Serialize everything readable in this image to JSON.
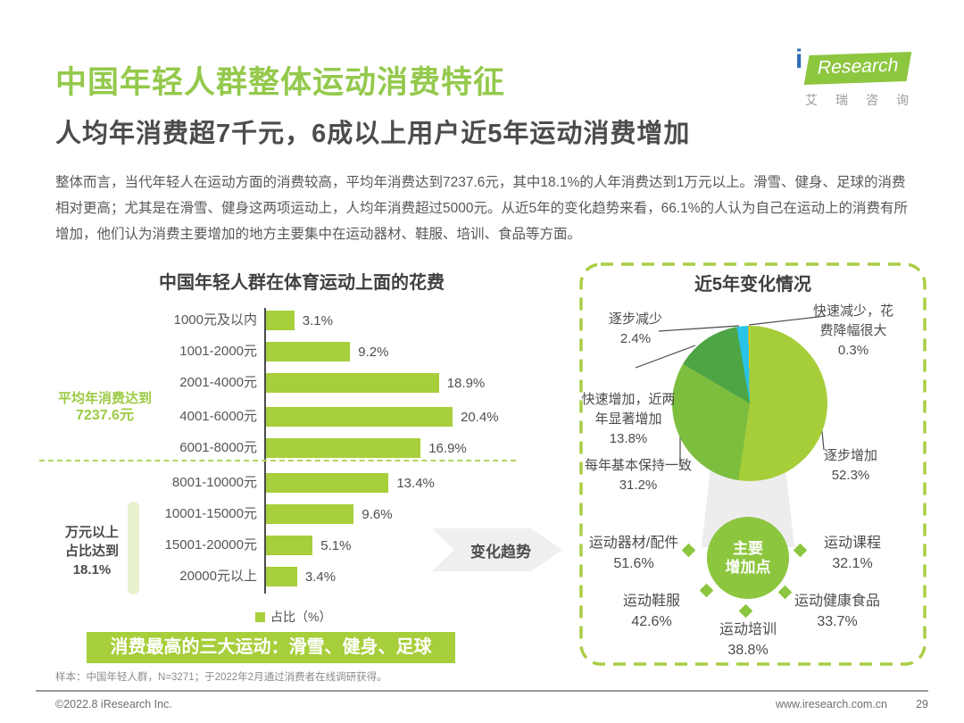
{
  "page": {
    "title": "中国年轻人群整体运动消费特征",
    "subtitle": "人均年消费超7千元，6成以上用户近5年运动消费增加",
    "body": "整体而言，当代年轻人在运动方面的消费较高，平均年消费达到7237.6元，其中18.1%的人年消费达到1万元以上。滑雪、健身、足球的消费相对更高；尤其是在滑雪、健身这两项运动上，人均年消费超过5000元。从近5年的变化趋势来看，66.1%的人认为自己在运动上的消费有所增加，他们认为消费主要增加的地方主要集中在运动器材、鞋服、培训、食品等方面。"
  },
  "logo": {
    "i": "i",
    "brand": "Research",
    "cn": "艾瑞咨询"
  },
  "colors": {
    "title_green": "#94C94C",
    "bar_green": "#A7CE3B",
    "circle_green": "#8CC63F",
    "capsule_green": "#E7F1CD",
    "pie_cyan": "#29C3E8",
    "pie_yellow": "#F2C40E",
    "logo_blue": "#2F6EB5",
    "gray_arrow": "#EFEFEF"
  },
  "chart_data": [
    {
      "type": "bar",
      "orientation": "horizontal",
      "title": "中国年轻人群在体育运动上面的花费",
      "series_name": "占比（%）",
      "categories": [
        "1000元及以内",
        "1001-2000元",
        "2001-4000元",
        "4001-6000元",
        "6001-8000元",
        "8001-10000元",
        "10001-15000元",
        "15001-20000元",
        "20000元以上"
      ],
      "values": [
        3.1,
        9.2,
        18.9,
        20.4,
        16.9,
        13.4,
        9.6,
        5.1,
        3.4
      ],
      "display_values": [
        "3.1%",
        "9.2%",
        "18.9%",
        "20.4%",
        "16.9%",
        "13.4%",
        "9.6%",
        "5.1%",
        "3.4%"
      ],
      "xlim": [
        0,
        22
      ],
      "annotations": [
        "平均年消费达到7237.6元",
        "万元以上占比达到18.1%"
      ]
    },
    {
      "type": "pie",
      "title": "近5年变化情况",
      "start_angle_deg": 0,
      "direction": "clockwise",
      "labels": [
        "逐步增加",
        "每年基本保持一致",
        "快速增加，近两年显著增加",
        "逐步减少",
        "快速减少，花费降幅很大"
      ],
      "values": [
        52.3,
        31.2,
        13.8,
        2.4,
        0.3
      ],
      "display_values": [
        "52.3%",
        "31.2%",
        "13.8%",
        "2.4%",
        "0.3%"
      ],
      "colors": [
        "#A6CE39",
        "#7DBE3F",
        "#4EA546",
        "#29C3E8",
        "#F2C40E"
      ]
    }
  ],
  "left_chart": {
    "avg_note_line1": "平均年消费达到",
    "avg_note_line2": "7237.6元",
    "over10k_line1": "万元以上",
    "over10k_line2": "占比达到",
    "over10k_line3": "18.1%",
    "legend": "占比（%）",
    "banner": "消费最高的三大运动：滑雪、健身、足球"
  },
  "trend_arrow_label": "变化趋势",
  "right_panel": {
    "title": "近5年变化情况",
    "center_line1": "主要",
    "center_line2": "增加点",
    "increase_points": [
      {
        "label": "运动器材/配件",
        "value": "51.6%"
      },
      {
        "label": "运动课程",
        "value": "32.1%"
      },
      {
        "label": "运动鞋服",
        "value": "42.6%"
      },
      {
        "label": "运动健康食品",
        "value": "33.7%"
      },
      {
        "label": "运动培训",
        "value": "38.8%"
      }
    ]
  },
  "footer": {
    "note": "样本：中国年轻人群，N=3271；于2022年2月通过消费者在线调研获得。",
    "copyright": "©2022.8 iResearch Inc.",
    "site": "www.iresearch.com.cn",
    "page_number": "29"
  }
}
